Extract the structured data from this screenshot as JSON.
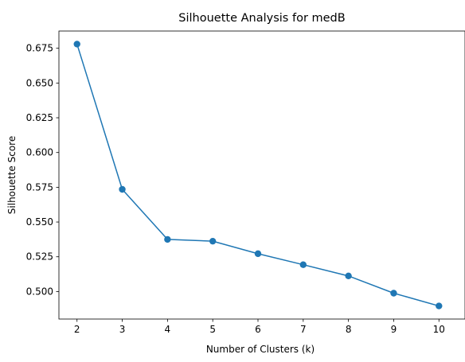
{
  "chart_data": {
    "type": "line",
    "title": "Silhouette Analysis for medB",
    "xlabel": "Number of Clusters (k)",
    "ylabel": "Silhouette Score",
    "x": [
      2,
      3,
      4,
      5,
      6,
      7,
      8,
      9,
      10
    ],
    "series": [
      {
        "values": [
          0.678,
          0.5735,
          0.5375,
          0.5362,
          0.5272,
          0.5193,
          0.5112,
          0.4988,
          0.4896
        ],
        "color": "#1f77b4",
        "marker": "circle"
      }
    ],
    "xlim": [
      1.6,
      10.4
    ],
    "ylim": [
      0.4802,
      0.6874
    ],
    "xticks": [
      "2",
      "3",
      "4",
      "5",
      "6",
      "7",
      "8",
      "9",
      "10"
    ],
    "yticks": [
      "0.500",
      "0.525",
      "0.550",
      "0.575",
      "0.600",
      "0.625",
      "0.650",
      "0.675"
    ],
    "grid": false,
    "legend": "none"
  }
}
